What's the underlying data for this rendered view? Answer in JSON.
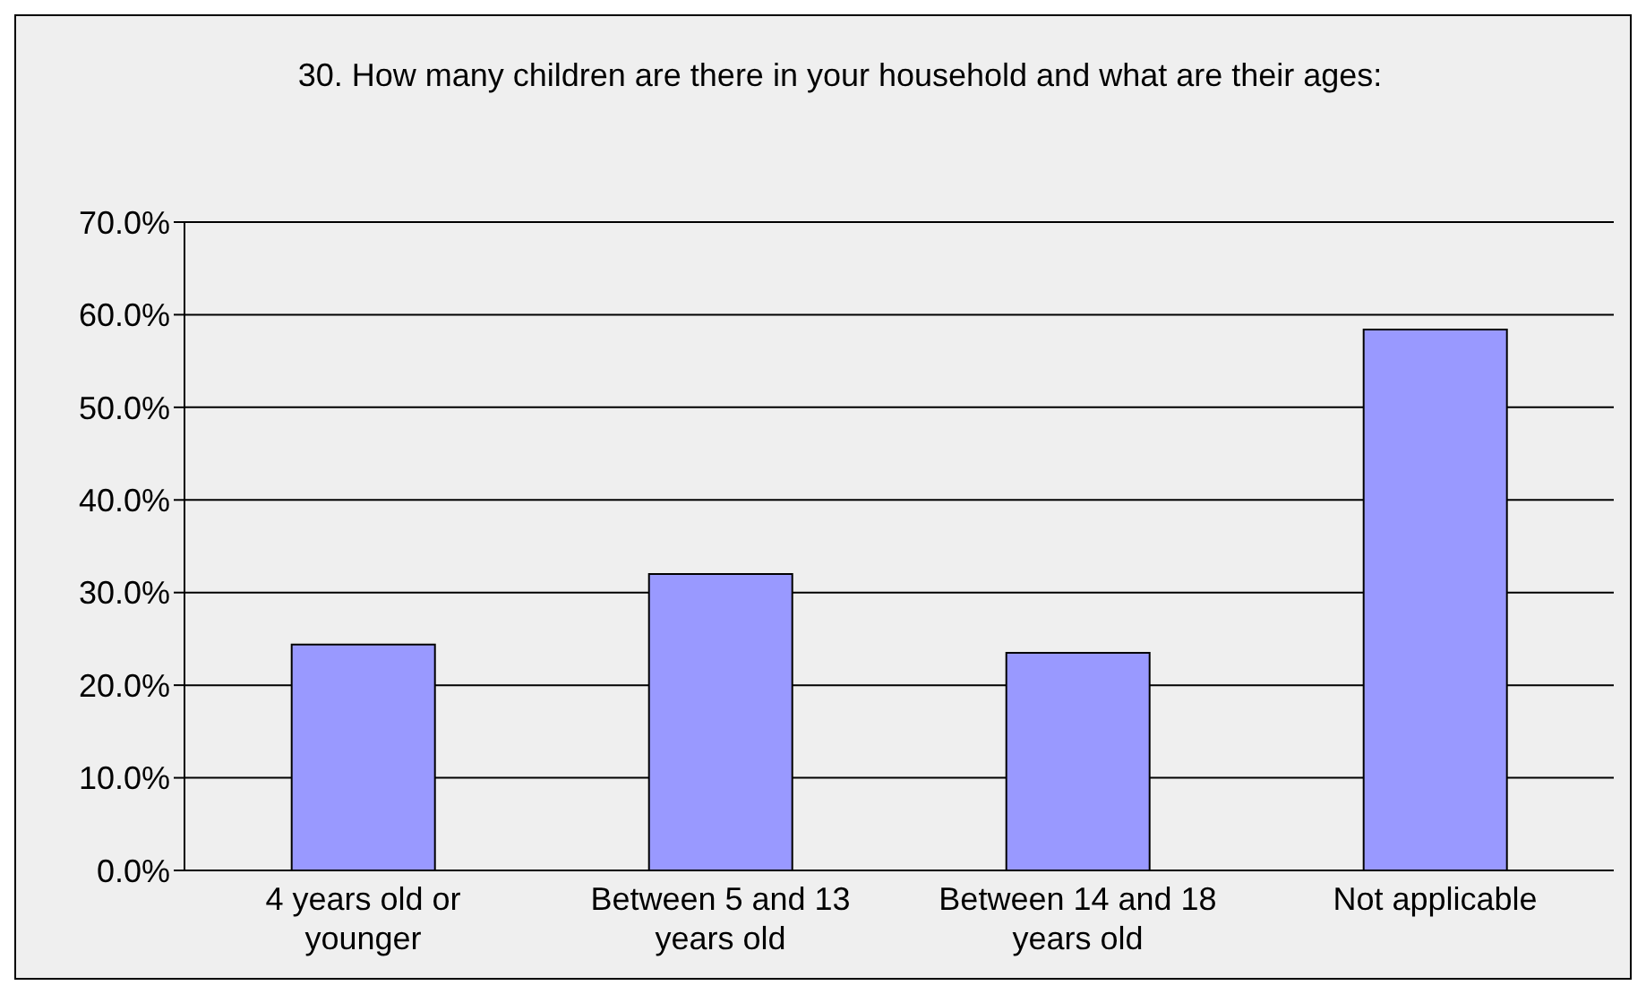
{
  "chart_data": {
    "type": "bar",
    "title": "30. How many children are there in your household and what are their ages:",
    "categories": [
      "4 years old or younger",
      "Between 5 and 13 years old",
      "Between 14 and 18 years old",
      "Not applicable"
    ],
    "values": [
      24.4,
      32.0,
      23.5,
      58.4
    ],
    "color": "#9999ff",
    "ylim": [
      0,
      70
    ],
    "yticks": [
      {
        "value": 0,
        "label": "0.0%"
      },
      {
        "value": 10,
        "label": "10.0%"
      },
      {
        "value": 20,
        "label": "20.0%"
      },
      {
        "value": 30,
        "label": "30.0%"
      },
      {
        "value": 40,
        "label": "40.0%"
      },
      {
        "value": 50,
        "label": "50.0%"
      },
      {
        "value": 60,
        "label": "60.0%"
      },
      {
        "value": 70,
        "label": "70.0%"
      }
    ],
    "grid": "y",
    "legend": false
  }
}
